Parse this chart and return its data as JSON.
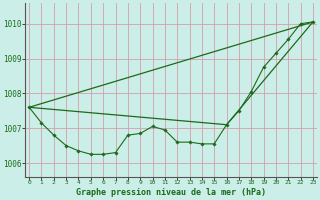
{
  "title": "Graphe pression niveau de la mer (hPa)",
  "background_color": "#cceee8",
  "grid_color": "#d4a0a8",
  "line_color": "#1a6b1a",
  "xlim": [
    -0.3,
    23.3
  ],
  "ylim": [
    1005.6,
    1010.6
  ],
  "yticks": [
    1006,
    1007,
    1008,
    1009,
    1010
  ],
  "xticks": [
    0,
    1,
    2,
    3,
    4,
    5,
    6,
    7,
    8,
    9,
    10,
    11,
    12,
    13,
    14,
    15,
    16,
    17,
    18,
    19,
    20,
    21,
    22,
    23
  ],
  "main_data": [
    1007.6,
    1007.15,
    1006.8,
    1006.5,
    1006.35,
    1006.25,
    1006.25,
    1006.3,
    1006.8,
    1006.85,
    1007.05,
    1006.95,
    1006.6,
    1006.6,
    1006.55,
    1006.55,
    1007.1,
    1007.5,
    1008.05,
    1008.75,
    1009.15,
    1009.55,
    1010.0,
    1010.05
  ],
  "trend1_x": [
    0,
    23
  ],
  "trend1_y": [
    1007.6,
    1010.05
  ],
  "trend2_x": [
    0,
    16,
    23
  ],
  "trend2_y": [
    1007.6,
    1007.1,
    1010.05
  ]
}
